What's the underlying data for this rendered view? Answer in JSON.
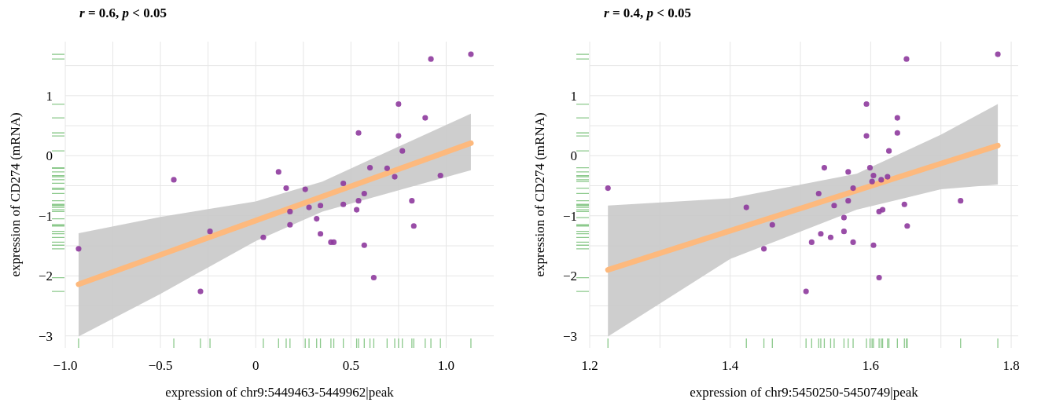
{
  "chart_data": [
    {
      "type": "scatter",
      "title": "r = 0.6, p < 0.05",
      "xlabel": "expression of chr9:5449463-5449962|peak",
      "ylabel": "expression of CD274 (mRNA)",
      "xlim": [
        -1.0,
        1.25
      ],
      "ylim": [
        -3.2,
        1.9
      ],
      "xticks": [
        {
          "value": -1.0,
          "label": "−1.0"
        },
        {
          "value": -0.75,
          "label": null
        },
        {
          "value": -0.5,
          "label": "−0.5"
        },
        {
          "value": -0.25,
          "label": null
        },
        {
          "value": 0,
          "label": "0"
        },
        {
          "value": 0.25,
          "label": null
        },
        {
          "value": 0.5,
          "label": "0.5"
        },
        {
          "value": 0.75,
          "label": null
        },
        {
          "value": 1.0,
          "label": "1.0"
        }
      ],
      "yticks": [
        {
          "value": -3,
          "label": "−3"
        },
        {
          "value": -2.5,
          "label": null
        },
        {
          "value": -2,
          "label": "−2"
        },
        {
          "value": -1.5,
          "label": null
        },
        {
          "value": -1,
          "label": "−1"
        },
        {
          "value": -0.5,
          "label": null
        },
        {
          "value": 0,
          "label": "0"
        },
        {
          "value": 0.5,
          "label": null
        },
        {
          "value": 1,
          "label": "1"
        },
        {
          "value": 1.5,
          "label": null
        }
      ],
      "grid": true,
      "series": [
        {
          "type": "line",
          "color": "#fdb97d",
          "x": [
            -0.93,
            -0.5,
            0,
            0.35,
            0.7,
            1.13
          ],
          "values": [
            -2.14,
            -1.65,
            -1.08,
            -0.68,
            -0.28,
            0.21
          ],
          "lower": [
            -3.01,
            -2.3,
            -1.42,
            -0.93,
            -0.62,
            -0.24
          ],
          "upper": [
            -1.29,
            -1.02,
            -0.76,
            -0.43,
            0.08,
            0.7
          ]
        },
        {
          "marker": "circle",
          "color": "#8e3a9d",
          "x": [
            -0.93,
            -0.43,
            -0.24,
            -0.29,
            0.04,
            0.12,
            0.16,
            0.18,
            0.18,
            0.26,
            0.28,
            0.34,
            0.32,
            0.34,
            0.395,
            0.41,
            0.46,
            0.46,
            0.54,
            0.54,
            0.53,
            0.57,
            0.57,
            0.6,
            0.62,
            0.69,
            0.73,
            0.75,
            0.75,
            0.77,
            0.82,
            0.83,
            0.89,
            0.92,
            0.97,
            1.13
          ],
          "values": [
            -1.55,
            -0.4,
            -1.26,
            -2.26,
            -1.36,
            -0.27,
            -0.54,
            -0.93,
            -1.15,
            -0.56,
            -0.86,
            -0.83,
            -1.05,
            -1.3,
            -1.44,
            -1.44,
            -0.46,
            -0.81,
            0.38,
            -0.75,
            -0.9,
            -0.63,
            -1.49,
            -0.2,
            -2.03,
            -0.21,
            -0.35,
            0.86,
            0.33,
            0.08,
            -0.75,
            -1.17,
            0.63,
            1.61,
            -0.33,
            1.69
          ]
        }
      ]
    },
    {
      "type": "scatter",
      "title": "r = 0.4, p < 0.05",
      "xlabel": "expression of chr9:5450250-5450749|peak",
      "ylabel": "expression of CD274 (mRNA)",
      "xlim": [
        1.2,
        1.81
      ],
      "ylim": [
        -3.2,
        1.9
      ],
      "xticks": [
        {
          "value": 1.2,
          "label": "1.2"
        },
        {
          "value": 1.3,
          "label": null
        },
        {
          "value": 1.4,
          "label": "1.4"
        },
        {
          "value": 1.5,
          "label": null
        },
        {
          "value": 1.6,
          "label": "1.6"
        },
        {
          "value": 1.7,
          "label": null
        },
        {
          "value": 1.8,
          "label": "1.8"
        }
      ],
      "yticks": [
        {
          "value": -3,
          "label": "−3"
        },
        {
          "value": -2.5,
          "label": null
        },
        {
          "value": -2,
          "label": "−2"
        },
        {
          "value": -1.5,
          "label": null
        },
        {
          "value": -1,
          "label": "−1"
        },
        {
          "value": -0.5,
          "label": null
        },
        {
          "value": 0,
          "label": "0"
        },
        {
          "value": 0.5,
          "label": null
        },
        {
          "value": 1,
          "label": "1"
        },
        {
          "value": 1.5,
          "label": null
        }
      ],
      "grid": true,
      "series": [
        {
          "type": "line",
          "color": "#fdb97d",
          "x": [
            1.226,
            1.4,
            1.58,
            1.7,
            1.781
          ],
          "values": [
            -1.9,
            -1.25,
            -0.58,
            -0.13,
            0.17
          ],
          "lower": [
            -3.01,
            -1.72,
            -0.9,
            -0.56,
            -0.48
          ],
          "upper": [
            -0.83,
            -0.71,
            -0.3,
            0.35,
            0.86
          ]
        },
        {
          "marker": "circle",
          "color": "#8e3a9d",
          "x": [
            1.226,
            1.423,
            1.46,
            1.448,
            1.508,
            1.516,
            1.529,
            1.534,
            1.526,
            1.543,
            1.548,
            1.562,
            1.562,
            1.568,
            1.568,
            1.575,
            1.575,
            1.594,
            1.594,
            1.599,
            1.604,
            1.604,
            1.602,
            1.612,
            1.612,
            1.617,
            1.615,
            1.624,
            1.626,
            1.638,
            1.638,
            1.648,
            1.651,
            1.652,
            1.728,
            1.781
          ],
          "values": [
            -0.54,
            -0.86,
            -1.15,
            -1.55,
            -2.26,
            -1.44,
            -1.3,
            -0.2,
            -0.63,
            -1.36,
            -0.83,
            -1.03,
            -1.26,
            -0.27,
            -0.75,
            -0.54,
            -1.44,
            0.86,
            0.33,
            -0.2,
            -0.33,
            -1.49,
            -0.43,
            -2.03,
            -0.93,
            -0.9,
            -0.4,
            -0.35,
            0.08,
            0.63,
            0.38,
            -0.81,
            1.61,
            -1.17,
            -0.75,
            1.69
          ]
        }
      ]
    }
  ]
}
